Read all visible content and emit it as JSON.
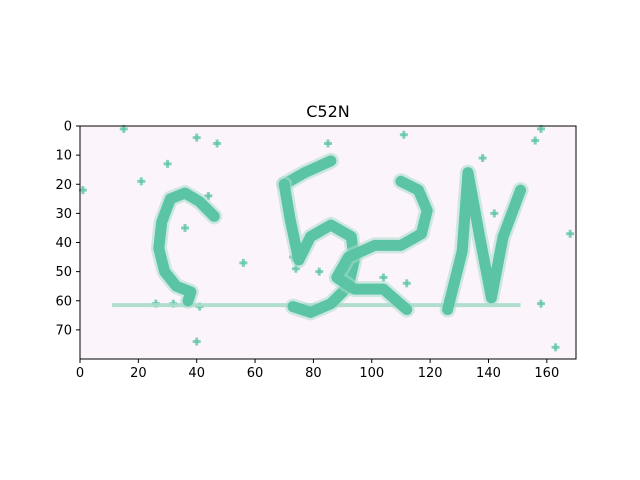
{
  "chart_data": {
    "type": "image",
    "title": "C52N",
    "captcha_text": "C52N",
    "xlim": [
      0,
      170
    ],
    "ylim": [
      80,
      0
    ],
    "xticks": [
      0,
      20,
      40,
      60,
      80,
      100,
      120,
      140,
      160
    ],
    "yticks": [
      0,
      10,
      20,
      30,
      40,
      50,
      60,
      70
    ],
    "background_color": "#fbf4fb",
    "stroke_color": "#5bc4a4",
    "strike_line": {
      "x": [
        11,
        151
      ],
      "y": 61.5
    },
    "glyphs": [
      {
        "char": "C",
        "points": [
          [
            46,
            31
          ],
          [
            41,
            26
          ],
          [
            36,
            23
          ],
          [
            31,
            25
          ],
          [
            28,
            33
          ],
          [
            27,
            42
          ],
          [
            29,
            50
          ],
          [
            33,
            55
          ],
          [
            38,
            57
          ],
          [
            37,
            60
          ]
        ]
      },
      {
        "char": "5",
        "points": [
          [
            86,
            12
          ],
          [
            77,
            16
          ],
          [
            70,
            20
          ]
        ],
        "points2": [
          [
            70,
            20
          ],
          [
            72,
            32
          ],
          [
            75,
            46
          ],
          [
            79,
            38
          ],
          [
            86,
            34
          ],
          [
            93,
            38
          ],
          [
            94,
            46
          ],
          [
            92,
            55
          ],
          [
            86,
            61
          ],
          [
            79,
            64
          ],
          [
            73,
            62
          ]
        ]
      },
      {
        "char": "2",
        "points": [
          [
            110,
            19
          ],
          [
            116,
            22
          ],
          [
            119,
            29
          ],
          [
            117,
            37
          ],
          [
            110,
            41
          ],
          [
            101,
            41
          ],
          [
            92,
            45
          ],
          [
            88,
            52
          ],
          [
            94,
            56
          ],
          [
            104,
            56
          ],
          [
            112,
            63
          ]
        ]
      },
      {
        "char": "N",
        "points": [
          [
            126,
            63
          ],
          [
            131,
            43
          ],
          [
            133,
            16
          ],
          [
            137,
            38
          ],
          [
            141,
            59
          ],
          [
            145,
            38
          ],
          [
            151,
            22
          ]
        ]
      }
    ],
    "noise_points": [
      [
        15,
        1
      ],
      [
        40,
        4
      ],
      [
        47,
        6
      ],
      [
        30,
        13
      ],
      [
        21,
        19
      ],
      [
        1,
        22
      ],
      [
        85,
        6
      ],
      [
        111,
        3
      ],
      [
        138,
        11
      ],
      [
        158,
        1
      ],
      [
        156,
        5
      ],
      [
        44,
        24
      ],
      [
        36,
        35
      ],
      [
        56,
        47
      ],
      [
        73,
        45
      ],
      [
        74,
        49
      ],
      [
        82,
        50
      ],
      [
        112,
        54
      ],
      [
        104,
        52
      ],
      [
        26,
        61
      ],
      [
        32,
        61
      ],
      [
        41,
        62
      ],
      [
        40,
        74
      ],
      [
        142,
        30
      ],
      [
        168,
        37
      ],
      [
        158,
        61
      ],
      [
        163,
        76
      ]
    ]
  }
}
